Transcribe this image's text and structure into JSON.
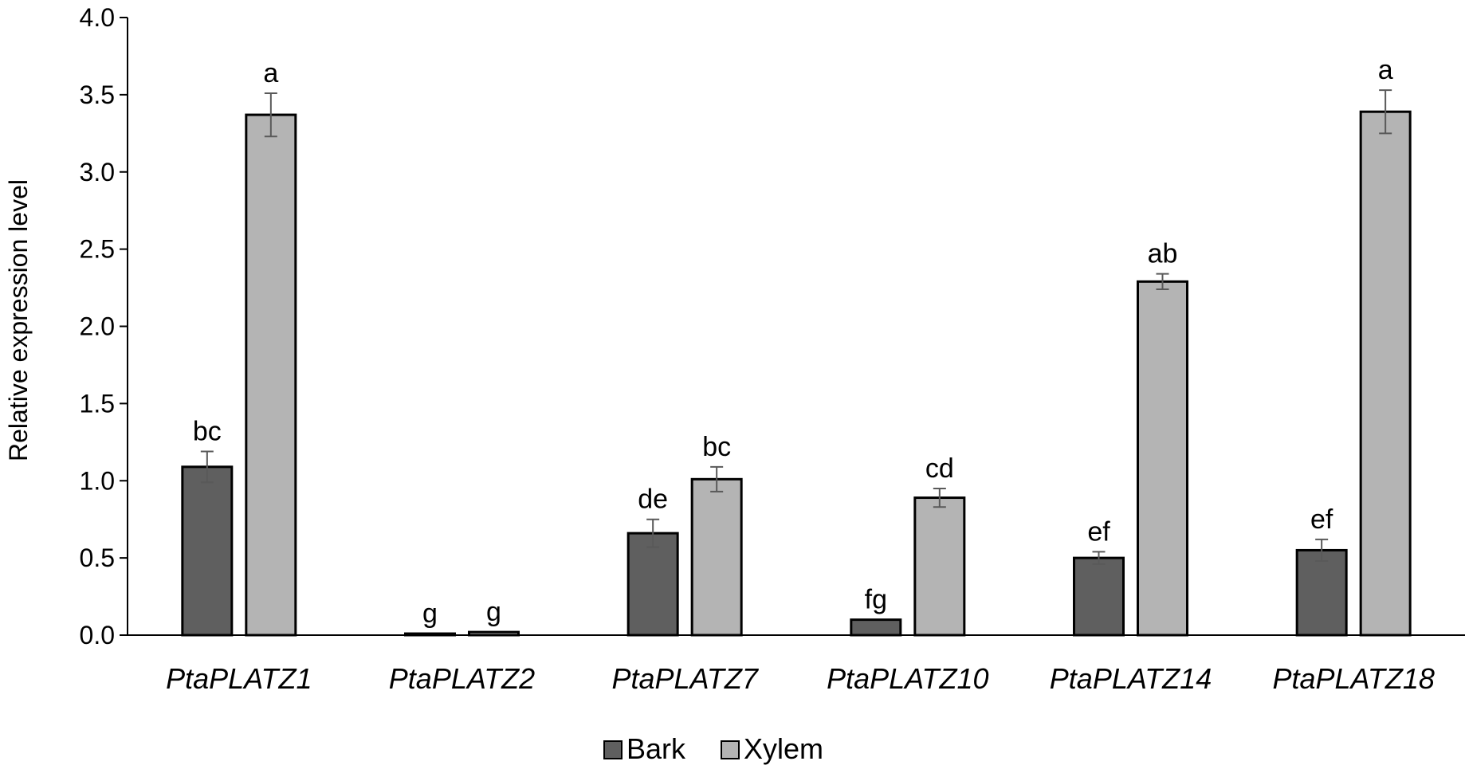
{
  "chart_data": {
    "type": "bar",
    "title": "",
    "xlabel": "",
    "ylabel": "Relative expression level",
    "ylim": [
      0,
      4.0
    ],
    "yticks": [
      "0.0",
      "0.5",
      "1.0",
      "1.5",
      "2.0",
      "2.5",
      "3.0",
      "3.5",
      "4.0"
    ],
    "categories": [
      "PtaPLATZ1",
      "PtaPLATZ2",
      "PtaPLATZ7",
      "PtaPLATZ10",
      "PtaPLATZ14",
      "PtaPLATZ18"
    ],
    "series": [
      {
        "name": "Bark",
        "color": "#5f5f5f",
        "values": [
          1.09,
          0.01,
          0.66,
          0.1,
          0.5,
          0.55
        ],
        "errors": [
          0.1,
          0.0,
          0.09,
          0.0,
          0.04,
          0.07
        ],
        "labels": [
          "bc",
          "g",
          "de",
          "fg",
          "ef",
          "ef"
        ]
      },
      {
        "name": "Xylem",
        "color": "#b4b4b4",
        "values": [
          3.37,
          0.02,
          1.01,
          0.89,
          2.29,
          3.39
        ],
        "errors": [
          0.14,
          0.0,
          0.08,
          0.06,
          0.05,
          0.14
        ],
        "labels": [
          "a",
          "g",
          "bc",
          "cd",
          "ab",
          "a"
        ]
      }
    ],
    "grid": false,
    "legend": "bottom-center"
  }
}
